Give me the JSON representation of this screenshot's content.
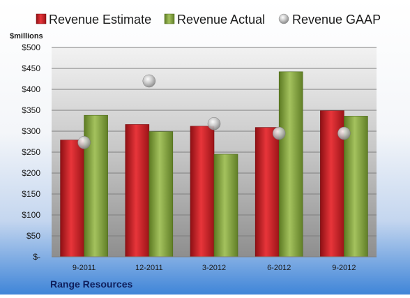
{
  "chart_data": {
    "type": "bar",
    "title": "",
    "ylabel": "$millions",
    "xlabel": "",
    "company": "Range Resources",
    "categories": [
      "9-2011",
      "12-2011",
      "3-2012",
      "6-2012",
      "9-2012"
    ],
    "ylim": [
      0,
      500
    ],
    "yticks": [
      0,
      50,
      100,
      150,
      200,
      250,
      300,
      350,
      400,
      450,
      500
    ],
    "ytick_labels": [
      "$-",
      "$50",
      "$100",
      "$150",
      "$200",
      "$250",
      "$300",
      "$350",
      "$400",
      "$450",
      "$500"
    ],
    "grid": true,
    "legend_position": "top",
    "series": [
      {
        "name": "Revenue Estimate",
        "kind": "bar",
        "color": "#d9262b",
        "values": [
          279,
          316,
          312,
          309,
          349
        ]
      },
      {
        "name": "Revenue Actual",
        "kind": "bar",
        "color": "#8fae4a",
        "values": [
          338,
          299,
          245,
          442,
          336
        ]
      },
      {
        "name": "Revenue GAAP",
        "kind": "marker",
        "color": "#b8b8b8",
        "values": [
          273,
          420,
          318,
          295,
          295
        ]
      }
    ],
    "background": {
      "top": "#ffffff",
      "bottom": "#3f85d8"
    }
  }
}
